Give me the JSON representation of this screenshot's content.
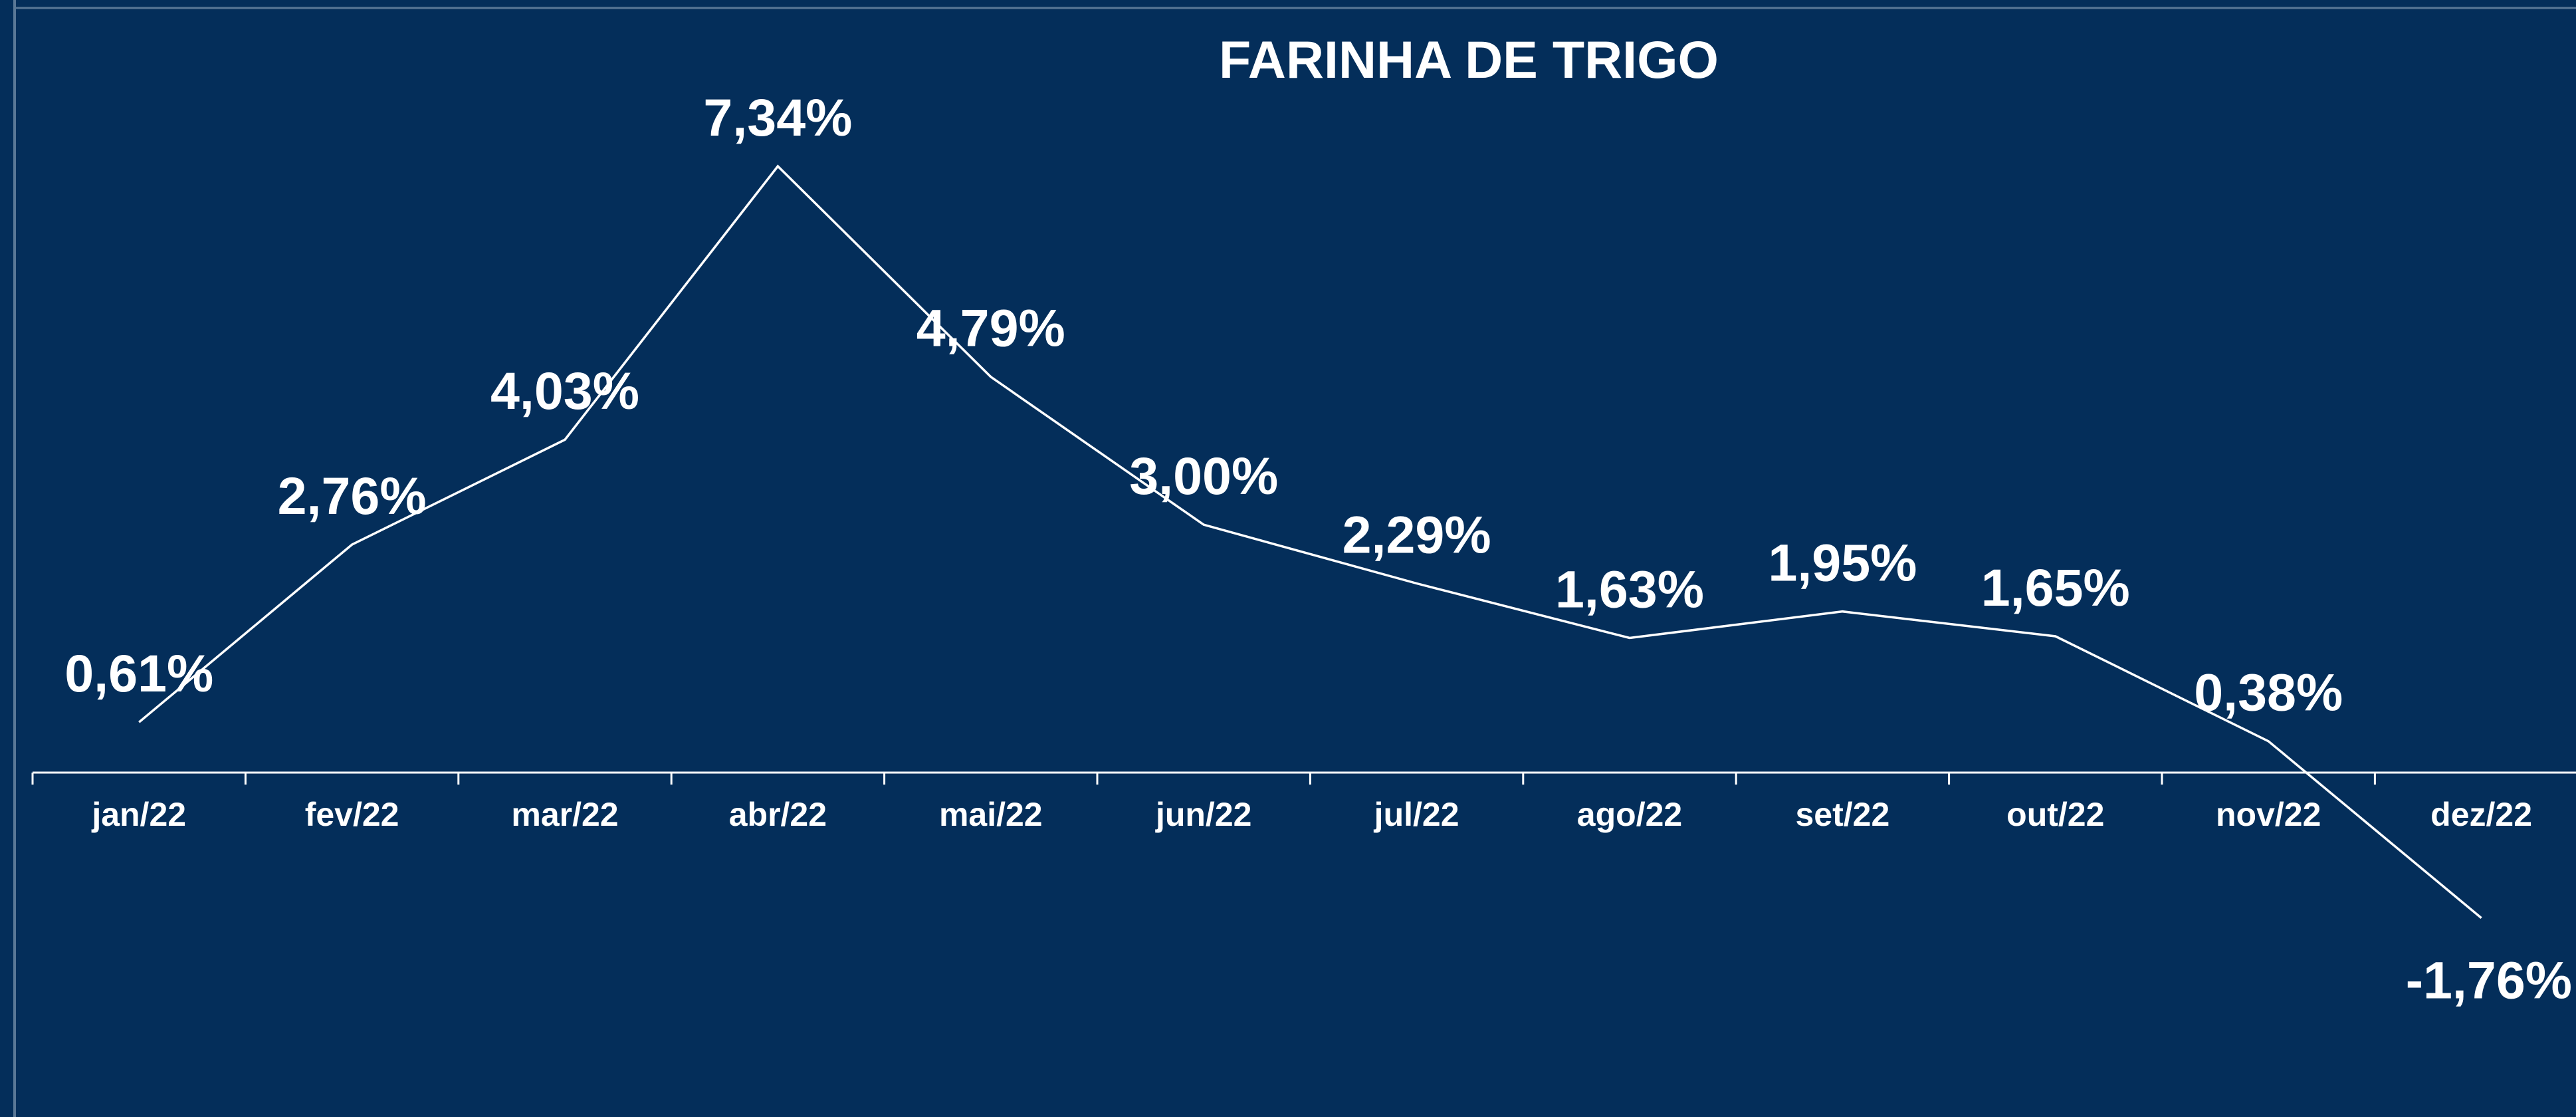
{
  "chart_data": {
    "type": "line",
    "title": "FARINHA DE TRIGO",
    "categories": [
      "jan/22",
      "fev/22",
      "mar/22",
      "abr/22",
      "mai/22",
      "jun/22",
      "jul/22",
      "ago/22",
      "set/22",
      "out/22",
      "nov/22",
      "dez/22"
    ],
    "series": [
      {
        "name": "FARINHA DE TRIGO",
        "color": "#ffffff",
        "values": [
          0.61,
          2.76,
          4.03,
          7.34,
          4.79,
          3.0,
          2.29,
          1.63,
          1.95,
          1.65,
          0.38,
          -1.76
        ],
        "value_labels": [
          "0,61%",
          "2,76%",
          "4,03%",
          "7,34%",
          "4,79%",
          "3,00%",
          "2,29%",
          "1,63%",
          "1,95%",
          "1,65%",
          "0,38%",
          "-1,76%"
        ]
      }
    ]
  }
}
